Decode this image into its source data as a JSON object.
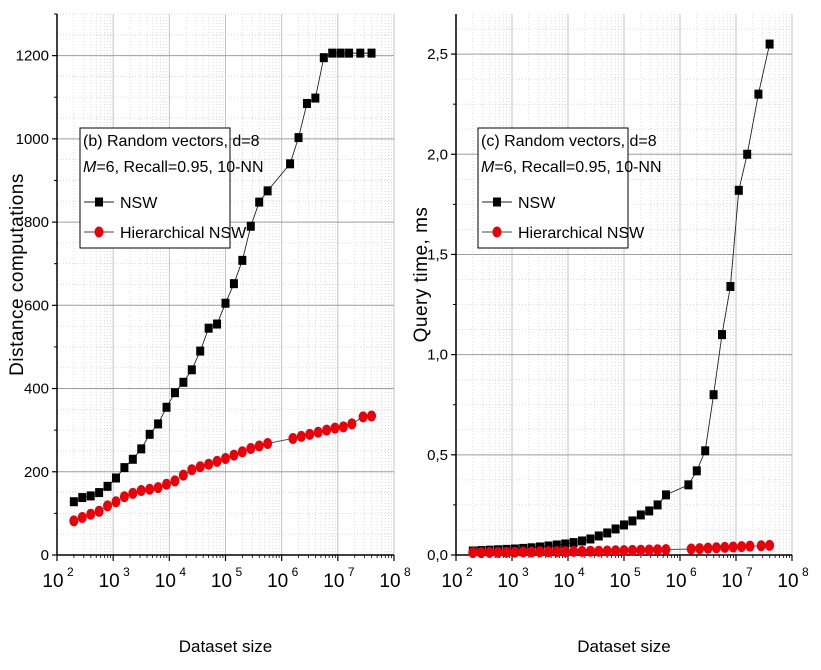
{
  "chart_data": [
    {
      "type": "line",
      "panel_label": "(b) Random vectors, d=8",
      "params_prefix": "M",
      "params_suffix": "=6, Recall=0.95, 10-NN",
      "xlabel": "Dataset size",
      "ylabel": "Distance computations",
      "xscale": "log",
      "x_tick_exponents": [
        2,
        3,
        4,
        5,
        6,
        7,
        8
      ],
      "x_tick_base": "10",
      "xlim": [
        2,
        8
      ],
      "ylim": [
        0,
        1300
      ],
      "y_ticks": [
        "0",
        "200",
        "400",
        "600",
        "800",
        "1000",
        "1200"
      ],
      "y_tick_values": [
        0,
        200,
        400,
        600,
        800,
        1000,
        1200
      ],
      "grid": true,
      "legend_position": "upper-left",
      "series": [
        {
          "name": "NSW",
          "color": "#000000",
          "marker": "square",
          "x_log10": [
            2.3,
            2.45,
            2.6,
            2.75,
            2.9,
            3.05,
            3.2,
            3.35,
            3.5,
            3.65,
            3.8,
            3.95,
            4.1,
            4.25,
            4.4,
            4.55,
            4.7,
            4.85,
            5.0,
            5.15,
            5.3,
            5.45,
            5.6,
            5.75,
            6.15,
            6.3,
            6.45,
            6.6,
            6.75,
            6.9,
            7.05,
            7.2,
            7.4,
            7.6
          ],
          "values": [
            128,
            138,
            142,
            150,
            165,
            185,
            210,
            230,
            255,
            290,
            315,
            355,
            390,
            415,
            445,
            490,
            545,
            555,
            605,
            652,
            708,
            790,
            848,
            875,
            940,
            1003,
            1085,
            1098,
            1195,
            1206,
            1206,
            1206,
            1206,
            1206
          ]
        },
        {
          "name": "Hierarchical NSW",
          "color": "#e8000a",
          "marker": "circle",
          "x_log10": [
            2.3,
            2.45,
            2.6,
            2.75,
            2.9,
            3.05,
            3.2,
            3.35,
            3.5,
            3.65,
            3.8,
            3.95,
            4.1,
            4.25,
            4.4,
            4.55,
            4.7,
            4.85,
            5.0,
            5.15,
            5.3,
            5.45,
            5.6,
            5.75,
            6.2,
            6.35,
            6.5,
            6.65,
            6.8,
            6.95,
            7.1,
            7.25,
            7.45,
            7.6
          ],
          "values": [
            82,
            90,
            98,
            105,
            118,
            128,
            140,
            148,
            155,
            158,
            162,
            170,
            178,
            192,
            205,
            212,
            218,
            225,
            232,
            240,
            248,
            256,
            262,
            268,
            280,
            285,
            290,
            295,
            300,
            305,
            308,
            315,
            332,
            334
          ]
        }
      ]
    },
    {
      "type": "line",
      "panel_label": "(c) Random vectors, d=8",
      "params_prefix": "M",
      "params_suffix": "=6, Recall=0.95, 10-NN",
      "xlabel": "Dataset size",
      "ylabel": "Query time, ms",
      "xscale": "log",
      "x_tick_exponents": [
        2,
        3,
        4,
        5,
        6,
        7,
        8
      ],
      "x_tick_base": "10",
      "xlim": [
        2,
        8
      ],
      "ylim": [
        0,
        2.7
      ],
      "y_ticks": [
        "0,0",
        "0,5",
        "1,0",
        "1,5",
        "2,0",
        "2,5"
      ],
      "y_tick_values": [
        0,
        0.5,
        1.0,
        1.5,
        2.0,
        2.5
      ],
      "grid": true,
      "legend_position": "upper-left",
      "series": [
        {
          "name": "NSW",
          "color": "#000000",
          "marker": "square",
          "x_log10": [
            2.3,
            2.45,
            2.6,
            2.75,
            2.9,
            3.05,
            3.2,
            3.35,
            3.5,
            3.65,
            3.8,
            3.95,
            4.1,
            4.25,
            4.4,
            4.55,
            4.7,
            4.85,
            5.0,
            5.15,
            5.3,
            5.45,
            5.6,
            5.75,
            6.15,
            6.3,
            6.45,
            6.6,
            6.75,
            6.9,
            7.05,
            7.2,
            7.4,
            7.6
          ],
          "values": [
            0.02,
            0.022,
            0.024,
            0.026,
            0.028,
            0.03,
            0.033,
            0.036,
            0.04,
            0.045,
            0.05,
            0.055,
            0.062,
            0.07,
            0.08,
            0.095,
            0.11,
            0.13,
            0.15,
            0.17,
            0.2,
            0.22,
            0.25,
            0.3,
            0.35,
            0.42,
            0.52,
            0.8,
            1.1,
            1.34,
            1.82,
            2.0,
            2.3,
            2.55
          ]
        },
        {
          "name": "Hierarchical NSW",
          "color": "#e8000a",
          "marker": "circle",
          "x_log10": [
            2.3,
            2.45,
            2.6,
            2.75,
            2.9,
            3.05,
            3.2,
            3.35,
            3.5,
            3.65,
            3.8,
            3.95,
            4.1,
            4.25,
            4.4,
            4.55,
            4.7,
            4.85,
            5.0,
            5.15,
            5.3,
            5.45,
            5.6,
            5.75,
            6.2,
            6.35,
            6.5,
            6.65,
            6.8,
            6.95,
            7.1,
            7.25,
            7.45,
            7.6
          ],
          "values": [
            0.012,
            0.012,
            0.013,
            0.013,
            0.014,
            0.014,
            0.015,
            0.015,
            0.016,
            0.016,
            0.017,
            0.017,
            0.018,
            0.018,
            0.019,
            0.019,
            0.02,
            0.021,
            0.022,
            0.023,
            0.024,
            0.025,
            0.026,
            0.027,
            0.03,
            0.032,
            0.034,
            0.036,
            0.038,
            0.04,
            0.042,
            0.044,
            0.046,
            0.048
          ]
        }
      ]
    }
  ]
}
